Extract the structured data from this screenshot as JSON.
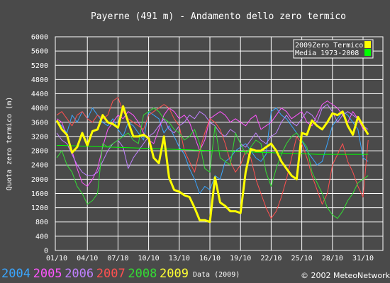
{
  "chart_data": {
    "type": "line",
    "title": "Payerne (491 m) - Andamento dello zero termico",
    "xlabel": "Data (200",
    "ylabel": "Quota zero termico (m)",
    "ylim": [
      0,
      6000
    ],
    "yticks": [
      0,
      400,
      800,
      1200,
      1600,
      2000,
      2400,
      2800,
      3200,
      3600,
      4000,
      4400,
      4800,
      5200,
      5600,
      6000
    ],
    "x_tick_labels": [
      "01/10",
      "04/10",
      "07/10",
      "10/10",
      "13/10",
      "16/10",
      "19/10",
      "22/10",
      "25/10",
      "28/10",
      "31/10"
    ],
    "grid": true,
    "legend": {
      "position": "top-right",
      "entries": [
        {
          "label": "2009Zero Termico",
          "color": "#ffff00"
        },
        {
          "label": "Media 1973-2008",
          "color": "#00ff00"
        }
      ]
    },
    "year_labels": [
      {
        "text": "2004",
        "color": "#3aa6ff"
      },
      {
        "text": "2005",
        "color": "#ff55ff"
      },
      {
        "text": "2006",
        "color": "#c080ff"
      },
      {
        "text": "2007",
        "color": "#ff5050"
      },
      {
        "text": "2008",
        "color": "#33dd33"
      },
      {
        "text": "2009",
        "color": "#ffff33"
      }
    ],
    "series": [
      {
        "name": "2004",
        "color": "#3aa6ff",
        "width": 1,
        "values": [
          3600,
          3500,
          3300,
          3800,
          3600,
          3900,
          3700,
          4000,
          3800,
          3600,
          3500,
          3700,
          3400,
          3200,
          3600,
          3500,
          3300,
          3100,
          3900,
          3800,
          3700,
          3300,
          3500,
          3200,
          2900,
          2700,
          2300,
          2000,
          1600,
          1800,
          1700,
          2100,
          2000,
          2500,
          2600,
          2800,
          2900,
          3000,
          2800,
          2600,
          2500,
          2700,
          3900,
          4000,
          3800,
          3700,
          3500,
          3300,
          3100,
          2800,
          2600,
          2400,
          2500,
          3000,
          3500,
          3700,
          3900,
          3800,
          3600,
          3400,
          2600,
          2500
        ]
      },
      {
        "name": "2005",
        "color": "#ff55ff",
        "width": 1,
        "values": [
          3700,
          3600,
          3200,
          2800,
          2300,
          1900,
          1800,
          2000,
          2300,
          2900,
          3400,
          3600,
          3800,
          3700,
          3900,
          3800,
          3600,
          3300,
          3100,
          3000,
          3400,
          3800,
          4000,
          3900,
          3700,
          3800,
          3600,
          3200,
          2800,
          3100,
          3700,
          3800,
          3900,
          3800,
          3600,
          3700,
          3600,
          3500,
          3700,
          3800,
          3400,
          3500,
          3600,
          3800,
          4000,
          3900,
          3700,
          3800,
          3900,
          3600,
          3500,
          3800,
          4100,
          4200,
          4100,
          4000,
          3800,
          3600,
          3900,
          3700,
          3400,
          3300
        ]
      },
      {
        "name": "2006",
        "color": "#c080ff",
        "width": 1,
        "values": [
          3300,
          3100,
          3000,
          2700,
          2400,
          2200,
          2100,
          2100,
          2200,
          2500,
          2800,
          3000,
          3100,
          2900,
          2300,
          2600,
          2800,
          3000,
          3200,
          3300,
          3500,
          3700,
          3400,
          3300,
          3500,
          3600,
          3800,
          3700,
          3900,
          3800,
          3600,
          3500,
          3300,
          3200,
          3400,
          3300,
          3000,
          2900,
          3100,
          3300,
          3100,
          3000,
          3200,
          3300,
          3600,
          3800,
          3600,
          3500,
          3700,
          3900,
          3800,
          3600,
          4000,
          4100,
          3900,
          3600,
          3800,
          3900,
          3800,
          3700,
          3500,
          3400
        ]
      },
      {
        "name": "2007",
        "color": "#ff5050",
        "width": 1,
        "values": [
          3800,
          3900,
          3700,
          3500,
          3800,
          3900,
          3700,
          3600,
          3800,
          3700,
          3800,
          4200,
          4300,
          3900,
          3700,
          3600,
          3500,
          3400,
          3800,
          3900,
          4000,
          4100,
          4000,
          3700,
          3500,
          2800,
          2500,
          2200,
          2800,
          3300,
          3700,
          3600,
          3400,
          3000,
          2500,
          2200,
          2400,
          2800,
          2600,
          2000,
          1600,
          1200,
          900,
          1100,
          1500,
          2000,
          2600,
          3200,
          3000,
          2600,
          2100,
          1700,
          1300,
          1600,
          2400,
          2700,
          3000,
          2500,
          2200,
          1800,
          1500,
          3100
        ]
      },
      {
        "name": "2008",
        "color": "#33dd33",
        "width": 1,
        "values": [
          2600,
          2800,
          2400,
          2200,
          1800,
          1600,
          1300,
          1400,
          1600,
          3000,
          2900,
          3000,
          3100,
          3200,
          3300,
          3100,
          3000,
          3800,
          3900,
          4000,
          3900,
          3700,
          3600,
          3400,
          3300,
          3100,
          3200,
          3400,
          3000,
          2300,
          2200,
          3500,
          2600,
          2500,
          2400,
          3300,
          3000,
          2700,
          2900,
          3100,
          3000,
          2200,
          1800,
          2300,
          2700,
          3000,
          3200,
          3300,
          3100,
          2900,
          2200,
          1900,
          1600,
          1200,
          1000,
          900,
          1100,
          1400,
          1600,
          1900,
          2000,
          2100
        ]
      },
      {
        "name": "Media 1973-2008",
        "color": "#00ff00",
        "width": 1,
        "values": [
          2950,
          2950,
          2945,
          2940,
          2935,
          2930,
          2925,
          2920,
          2915,
          2910,
          2905,
          2900,
          2895,
          2890,
          2885,
          2880,
          2875,
          2870,
          2865,
          2860,
          2855,
          2850,
          2845,
          2840,
          2835,
          2830,
          2825,
          2820,
          2815,
          2810,
          2805,
          2800,
          2795,
          2790,
          2785,
          2780,
          2775,
          2770,
          2765,
          2760,
          2755,
          2750,
          2745,
          2740,
          2735,
          2730,
          2725,
          2720,
          2715,
          2710,
          2705,
          2700,
          2700,
          2700,
          2700,
          2700,
          2700,
          2700,
          2700,
          2700,
          2700,
          2700
        ]
      },
      {
        "name": "2009Zero Termico",
        "color": "#ffff00",
        "width": 3,
        "values": [
          3650,
          3400,
          3250,
          2750,
          2900,
          3300,
          2950,
          3350,
          3400,
          3800,
          3600,
          3550,
          3450,
          4050,
          3600,
          3200,
          3200,
          3250,
          3150,
          2600,
          2450,
          3200,
          2050,
          1700,
          1650,
          1550,
          1500,
          1200,
          850,
          850,
          800,
          2050,
          1350,
          1250,
          1100,
          1100,
          1050,
          2200,
          2850,
          2800,
          2800,
          2900,
          3000,
          2800,
          2500,
          2300,
          2100,
          2000,
          3300,
          3250,
          3650,
          3500,
          3400,
          3600,
          3850,
          3800,
          3900,
          3500,
          3250,
          3750,
          3500,
          3250
        ]
      }
    ]
  },
  "footer": {
    "xlabel_suffix": "9)",
    "credit": "© 2002 MeteoNetwork"
  }
}
